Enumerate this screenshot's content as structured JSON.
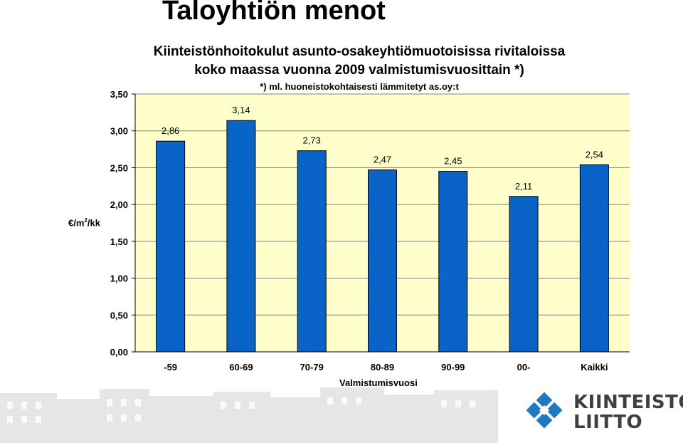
{
  "slide": {
    "title": "Taloyhtiön menot"
  },
  "brand": {
    "line1": "KIINTEISTÖ",
    "line2": "LIITTO",
    "mark_color": "#1f78c0"
  },
  "chart_data": {
    "type": "bar",
    "title": "Kiinteistönhoitokulut asunto-osakeyhtiömuotoisissa rivitaloissa",
    "title2": "koko maassa vuonna 2009 valmistumisvuosittain *)",
    "subtitle": "*) ml. huoneistokohtaisesti lämmitetyt as.oy:t",
    "ylabel": "€/m",
    "ylabel_sup": "2",
    "ylabel_suffix": "/kk",
    "xlabel": "Valmistumisvuosi",
    "categories": [
      "-59",
      "60-69",
      "70-79",
      "80-89",
      "90-99",
      "00-",
      "Kaikki"
    ],
    "values": [
      2.86,
      3.14,
      2.73,
      2.47,
      2.45,
      2.11,
      2.54
    ],
    "value_labels": [
      "2,86",
      "3,14",
      "2,73",
      "2,47",
      "2,45",
      "2,11",
      "2,54"
    ],
    "ylim": [
      0,
      3.5
    ],
    "yticks": [
      "0,00",
      "0,50",
      "1,00",
      "1,50",
      "2,00",
      "2,50",
      "3,00",
      "3,50"
    ],
    "grid": true,
    "colors": {
      "bar": "#0a64c8",
      "plot_bg": "#ffffcc",
      "grid": "#7f7f7f"
    }
  }
}
